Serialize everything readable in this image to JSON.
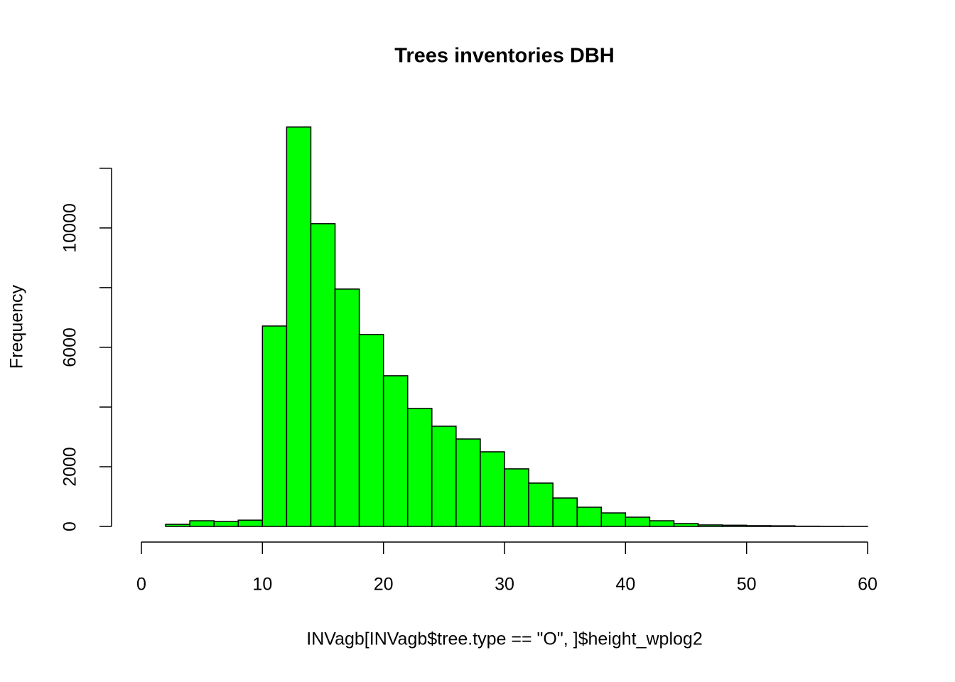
{
  "chart_data": {
    "type": "histogram",
    "title": "Trees inventories DBH",
    "x_label": "INVagb[INVagb$tree.type == \"O\", ]$height_wplog2",
    "y_label": "Frequency",
    "bins": [
      0,
      2,
      4,
      6,
      8,
      10,
      12,
      14,
      16,
      18,
      20,
      22,
      24,
      26,
      28,
      30,
      32,
      34,
      36,
      38,
      40,
      42,
      44,
      46,
      48,
      50,
      52,
      54,
      56,
      58,
      60
    ],
    "values": [
      0,
      70,
      190,
      165,
      210,
      6714,
      13381,
      10143,
      7952,
      6429,
      5048,
      3952,
      3357,
      2929,
      2500,
      1929,
      1452,
      952,
      643,
      452,
      310,
      190,
      95,
      50,
      40,
      25,
      20,
      8,
      5,
      3
    ],
    "color": "#00ff00",
    "xlim": [
      0,
      60
    ],
    "xticks": [
      0,
      10,
      20,
      30,
      40,
      50,
      60
    ],
    "ylim": [
      0,
      13900
    ],
    "yticks": [
      0,
      2000,
      6000,
      10000
    ],
    "ytick_marks": [
      0,
      2000,
      4000,
      6000,
      8000,
      10000,
      12000
    ]
  }
}
